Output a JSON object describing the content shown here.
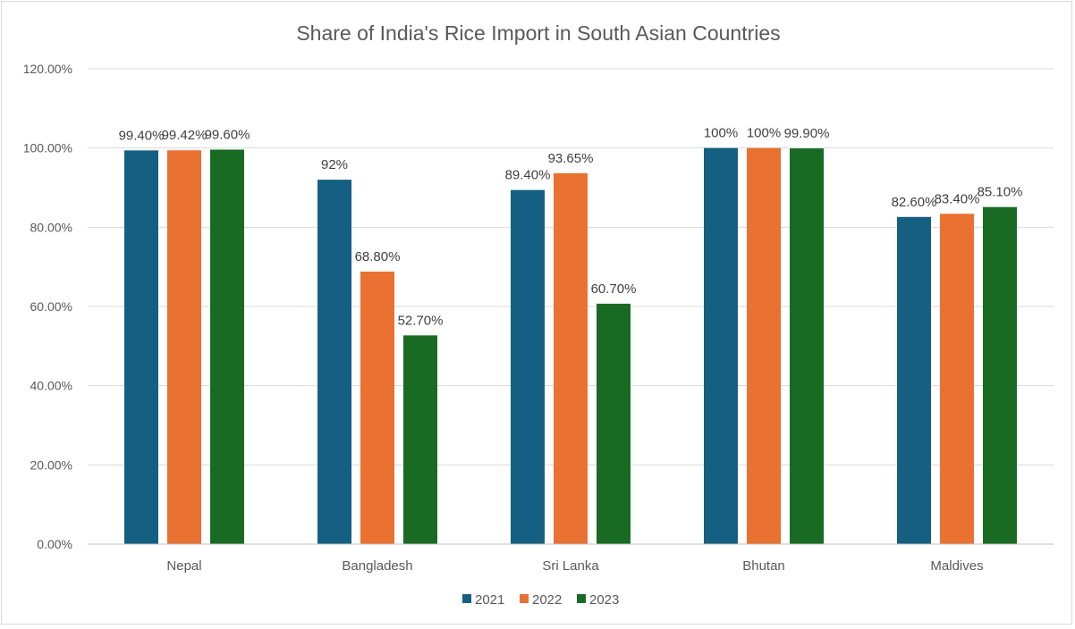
{
  "chart_data": {
    "type": "bar",
    "title": "Share of India's Rice Import in South Asian Countries",
    "xlabel": "",
    "ylabel": "",
    "ylim": [
      0,
      120
    ],
    "yticks": [
      0,
      20,
      40,
      60,
      80,
      100,
      120
    ],
    "ytick_labels": [
      "0.00%",
      "20.00%",
      "40.00%",
      "60.00%",
      "80.00%",
      "100.00%",
      "120.00%"
    ],
    "grid": true,
    "legend_position": "bottom",
    "categories": [
      "Nepal",
      "Bangladesh",
      "Sri Lanka",
      "Bhutan",
      "Maldives"
    ],
    "series": [
      {
        "name": "2021",
        "color": "#156082",
        "values": [
          99.4,
          92,
          89.4,
          100,
          82.6
        ],
        "labels": [
          "99.40%",
          "92%",
          "89.40%",
          "100%",
          "82.60%"
        ]
      },
      {
        "name": "2022",
        "color": "#E97132",
        "values": [
          99.42,
          68.8,
          93.65,
          100,
          83.4
        ],
        "labels": [
          "99.42%",
          "68.80%",
          "93.65%",
          "100%",
          "83.40%"
        ]
      },
      {
        "name": "2023",
        "color": "#196B24",
        "values": [
          99.6,
          52.7,
          60.7,
          99.9,
          85.1
        ],
        "labels": [
          "99.60%",
          "52.70%",
          "60.70%",
          "99.90%",
          "85.10%"
        ]
      }
    ]
  }
}
